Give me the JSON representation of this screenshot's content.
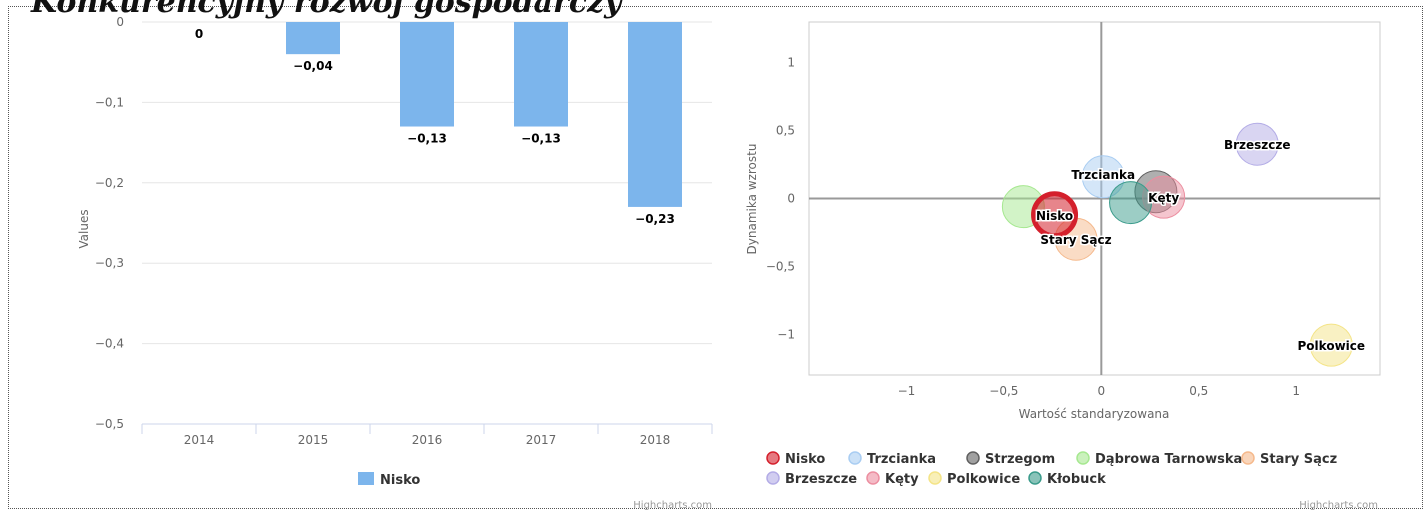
{
  "page": {
    "title": "Konkurencyjny rozwój gospodarczy"
  },
  "chart_data": [
    {
      "type": "bar",
      "categories": [
        "2014",
        "2015",
        "2016",
        "2017",
        "2018"
      ],
      "series": [
        {
          "name": "Nisko",
          "values": [
            0,
            -0.04,
            -0.13,
            -0.13,
            -0.23
          ],
          "labels": [
            "0",
            "−0,04",
            "−0,13",
            "−0,13",
            "−0,23"
          ]
        }
      ],
      "ylabel": "Values",
      "ylim": [
        -0.5,
        0
      ],
      "yticks": [
        0,
        -0.1,
        -0.2,
        -0.3,
        -0.4,
        -0.5
      ],
      "ytick_labels": [
        "0",
        "−0,1",
        "−0,2",
        "−0,3",
        "−0,4",
        "−0,5"
      ],
      "grid": true,
      "legend_position": "bottom",
      "color": "#7cb5ec",
      "credits": "Highcharts.com"
    },
    {
      "type": "scatter",
      "xlabel": "Wartość standaryzowana",
      "ylabel": "Dynamika wzrostu",
      "xlim": [
        -1.5,
        1.43
      ],
      "ylim": [
        -1.3,
        1.3
      ],
      "xticks": [
        -1,
        -0.5,
        0,
        0.5,
        1
      ],
      "xtick_labels": [
        "−1",
        "−0,5",
        "0",
        "0,5",
        "1"
      ],
      "yticks": [
        1,
        0.5,
        0,
        -0.5,
        -1
      ],
      "ytick_labels": [
        "1",
        "0,5",
        "0",
        "−0,5",
        "−1"
      ],
      "legend_position": "bottom",
      "credits": "Highcharts.com",
      "series": [
        {
          "name": "Nisko",
          "x": -0.24,
          "y": -0.12,
          "label": "Nisko",
          "color": "#d4202c",
          "highlight": true
        },
        {
          "name": "Trzcianka",
          "x": 0.01,
          "y": 0.16,
          "label": "Trzcianka",
          "color": "#a9cdf2"
        },
        {
          "name": "Strzegom",
          "x": 0.28,
          "y": 0.05,
          "label": "",
          "color": "#606060"
        },
        {
          "name": "Dąbrowa Tarnowska",
          "x": -0.4,
          "y": -0.06,
          "label": "",
          "color": "#a6e890"
        },
        {
          "name": "Stary Sącz",
          "x": -0.13,
          "y": -0.3,
          "label": "Stary Sącz",
          "color": "#f5b98c"
        },
        {
          "name": "Brzeszcze",
          "x": 0.8,
          "y": 0.4,
          "label": "Brzeszcze",
          "color": "#b3ace6"
        },
        {
          "name": "Kęty",
          "x": 0.32,
          "y": 0.01,
          "label": "Kęty",
          "color": "#ec8ea0"
        },
        {
          "name": "Polkowice",
          "x": 1.18,
          "y": -1.08,
          "label": "Polkowice",
          "color": "#f4e487"
        },
        {
          "name": "Kłobuck",
          "x": 0.15,
          "y": -0.03,
          "label": "",
          "color": "#3a9b8b"
        }
      ]
    }
  ]
}
